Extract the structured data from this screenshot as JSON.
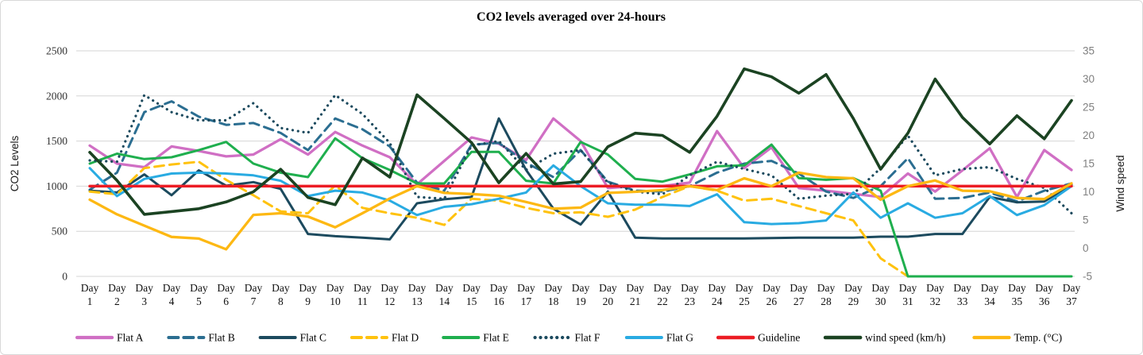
{
  "title": "CO2 levels averaged over 24-hours",
  "left_axis": {
    "label": "CO2 Levels",
    "min": 0,
    "max": 2500,
    "ticks": [
      0,
      500,
      1000,
      1500,
      2000,
      2500
    ]
  },
  "right_axis": {
    "label": "Wind speed",
    "min": -5,
    "max": 35,
    "ticks": [
      -5,
      0,
      5,
      10,
      15,
      20,
      25,
      30,
      35
    ]
  },
  "x_axis": {
    "label_prefix": "Day",
    "days": [
      1,
      2,
      3,
      4,
      5,
      6,
      7,
      8,
      9,
      10,
      11,
      12,
      13,
      14,
      15,
      16,
      17,
      18,
      19,
      20,
      21,
      22,
      23,
      24,
      25,
      26,
      27,
      28,
      29,
      30,
      31,
      32,
      33,
      34,
      35,
      36,
      37
    ]
  },
  "colors": {
    "flat_a": "#d06fc4",
    "flat_b": "#2b6e91",
    "flat_c": "#1c4a5e",
    "flat_d": "#ffc20e",
    "flat_e": "#1faf4e",
    "flat_f": "#1c4a5e",
    "flat_g": "#29abe2",
    "guideline": "#ec1c24",
    "wind": "#1b4322",
    "temp": "#fdb813",
    "gridline": "#d6d6d6"
  },
  "chart_data": {
    "type": "line",
    "title": "CO2 levels averaged over 24-hours",
    "xlabel": "Day",
    "ylabel_left": "CO2 Levels",
    "ylabel_right": "Wind speed",
    "ylim_left": [
      0,
      2500
    ],
    "ylim_right": [
      -5,
      35
    ],
    "grid": "horizontal",
    "legend_position": "bottom",
    "categories": [
      1,
      2,
      3,
      4,
      5,
      6,
      7,
      8,
      9,
      10,
      11,
      12,
      13,
      14,
      15,
      16,
      17,
      18,
      19,
      20,
      21,
      22,
      23,
      24,
      25,
      26,
      27,
      28,
      29,
      30,
      31,
      32,
      33,
      34,
      35,
      36,
      37
    ],
    "series": [
      {
        "name": "Flat A",
        "axis": "left",
        "style": "solid",
        "width": 3.25,
        "color": "#d06fc4",
        "values": [
          1450,
          1250,
          1210,
          1440,
          1390,
          1330,
          1350,
          1520,
          1350,
          1600,
          1450,
          1320,
          1020,
          1280,
          1540,
          1470,
          1290,
          1750,
          1500,
          980,
          1000,
          1000,
          1040,
          1610,
          1200,
          1430,
          980,
          950,
          915,
          880,
          1140,
          940,
          1175,
          1420,
          880,
          1400,
          1180
        ]
      },
      {
        "name": "Flat B",
        "axis": "left",
        "style": "dashed",
        "width": 3,
        "color": "#2b6e91",
        "values": [
          960,
          1150,
          1820,
          1940,
          1770,
          1680,
          1700,
          1590,
          1400,
          1750,
          1630,
          1440,
          1040,
          950,
          1460,
          1480,
          1260,
          1100,
          1400,
          1050,
          950,
          940,
          1000,
          1150,
          1250,
          1280,
          1140,
          940,
          870,
          1000,
          1310,
          860,
          870,
          930,
          830,
          950,
          1030
        ]
      },
      {
        "name": "Flat C",
        "axis": "left",
        "style": "solid",
        "width": 3,
        "color": "#1c4a5e",
        "values": [
          950,
          930,
          1130,
          900,
          1175,
          1005,
          1045,
          970,
          470,
          445,
          430,
          410,
          810,
          855,
          880,
          1750,
          1180,
          750,
          575,
          940,
          430,
          420,
          420,
          420,
          420,
          425,
          430,
          430,
          430,
          440,
          440,
          470,
          470,
          880,
          820,
          830,
          1015
        ]
      },
      {
        "name": "Flat D",
        "axis": "left",
        "style": "dashed",
        "width": 3,
        "color": "#ffc20e",
        "values": [
          940,
          910,
          1200,
          1240,
          1270,
          1070,
          900,
          720,
          700,
          1010,
          760,
          700,
          650,
          570,
          860,
          840,
          760,
          700,
          710,
          660,
          740,
          880,
          1000,
          950,
          840,
          860,
          780,
          700,
          620,
          200,
          0,
          null,
          null,
          null,
          null,
          null,
          null
        ]
      },
      {
        "name": "Flat E",
        "axis": "left",
        "style": "solid",
        "width": 3,
        "color": "#1faf4e",
        "values": [
          1250,
          1360,
          1300,
          1320,
          1400,
          1490,
          1250,
          1150,
          1100,
          1530,
          1310,
          1180,
          1030,
          1030,
          1380,
          1380,
          1060,
          1030,
          1490,
          1350,
          1080,
          1050,
          1130,
          1220,
          1230,
          1460,
          1090,
          1070,
          1090,
          950,
          0,
          0,
          0,
          0,
          0,
          0,
          0
        ]
      },
      {
        "name": "Flat F",
        "axis": "left",
        "style": "dotted",
        "width": 3.2,
        "color": "#1c4a5e",
        "values": [
          1285,
          1270,
          2010,
          1820,
          1730,
          1730,
          1920,
          1645,
          1590,
          2010,
          1800,
          1480,
          880,
          860,
          1450,
          1500,
          1180,
          1360,
          1400,
          1040,
          940,
          910,
          1120,
          1270,
          1190,
          1120,
          860,
          895,
          915,
          1200,
          1560,
          1120,
          1190,
          1210,
          1080,
          980,
          700
        ]
      },
      {
        "name": "Flat G",
        "axis": "left",
        "style": "solid",
        "width": 3,
        "color": "#29abe2",
        "values": [
          1200,
          890,
          1080,
          1140,
          1150,
          1140,
          1120,
          1060,
          890,
          950,
          930,
          840,
          680,
          770,
          800,
          860,
          930,
          1230,
          1000,
          810,
          795,
          795,
          780,
          910,
          600,
          580,
          590,
          620,
          930,
          650,
          810,
          650,
          700,
          890,
          680,
          790,
          1000
        ]
      },
      {
        "name": "Guideline",
        "axis": "left",
        "style": "solid",
        "width": 3.5,
        "color": "#ec1c24",
        "values": [
          1000,
          1000,
          1000,
          1000,
          1000,
          1000,
          1000,
          1000,
          1000,
          1000,
          1000,
          1000,
          1000,
          1000,
          1000,
          1000,
          1000,
          1000,
          1000,
          1000,
          1000,
          1000,
          1000,
          1000,
          1000,
          1000,
          1000,
          1000,
          1000,
          1000,
          1000,
          1000,
          1000,
          1000,
          1000,
          1000,
          1000
        ]
      },
      {
        "name": "wind speed (km/h)",
        "axis": "right",
        "style": "solid",
        "width": 3.6,
        "color": "#1b4322",
        "values": [
          17,
          12,
          6,
          6.5,
          7,
          8.2,
          10,
          14,
          9,
          7.7,
          16,
          12.6,
          27.2,
          23,
          18.7,
          11.6,
          16.8,
          11.4,
          11.8,
          18,
          20.4,
          20,
          17,
          23.4,
          31.8,
          30.4,
          27.5,
          30.8,
          23,
          14,
          20.4,
          30,
          23.2,
          18.5,
          23.5,
          19.4,
          26.2
        ]
      },
      {
        "name": "Temp. (°C)",
        "axis": "right",
        "style": "solid",
        "width": 3.3,
        "color": "#fdb813",
        "values": [
          8.6,
          6,
          4,
          2,
          1.7,
          -0.2,
          5.9,
          6.2,
          5.6,
          3.7,
          6.2,
          8.8,
          11,
          9.8,
          9.6,
          9.3,
          8.2,
          7,
          7.2,
          9.8,
          10,
          10.3,
          11,
          10.3,
          12.4,
          11,
          13.4,
          12.6,
          12.4,
          8.6,
          11,
          12,
          10.2,
          10.1,
          8.9,
          8.7,
          11.5
        ]
      }
    ]
  }
}
